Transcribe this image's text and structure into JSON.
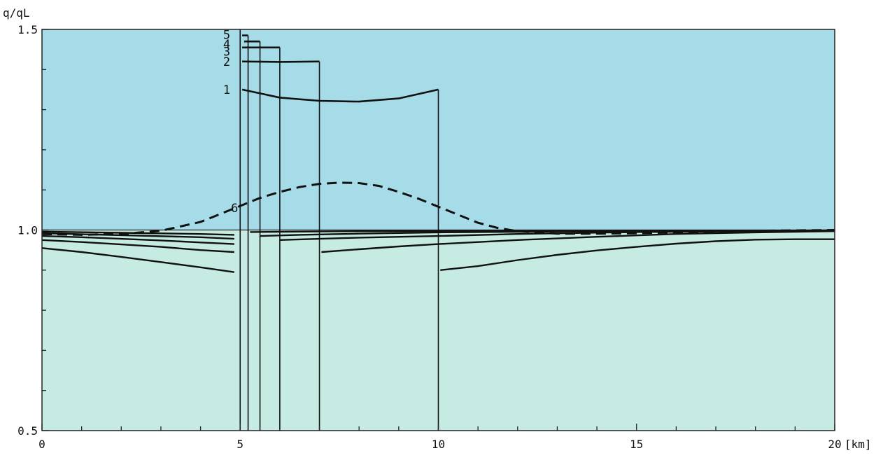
{
  "chart_data": {
    "type": "line",
    "ylabel": "q/qL",
    "xlabel": "[km]",
    "xlim": [
      0,
      20
    ],
    "ylim": [
      0.5,
      1.5
    ],
    "x_ticks": [
      0,
      5,
      10,
      15,
      20
    ],
    "x_tick_labels": [
      "0",
      "5",
      "10",
      "15",
      "20"
    ],
    "y_ticks": [
      0.5,
      1.0,
      1.5
    ],
    "y_tick_labels": [
      "0.5",
      "1.0",
      "1.5"
    ],
    "x_minor_step": 1,
    "y_minor_step": 0.1,
    "reference_level": 1.0,
    "colors": {
      "upper_region": "#a6dbe8",
      "lower_region": "#c5ebe2",
      "line": "#111111",
      "frame": "#222222"
    },
    "series": [
      {
        "name": "1",
        "style": "solid",
        "zone_start": 5.0,
        "zone_end": 10.0,
        "peak": [
          [
            5.05,
            1.35
          ],
          [
            6.0,
            1.33
          ],
          [
            7.0,
            1.322
          ],
          [
            8.0,
            1.32
          ],
          [
            9.0,
            1.328
          ],
          [
            10.0,
            1.35
          ]
        ],
        "outside": [
          [
            0,
            0.955
          ],
          [
            1,
            0.945
          ],
          [
            2,
            0.933
          ],
          [
            3,
            0.92
          ],
          [
            4,
            0.907
          ],
          [
            4.85,
            0.895
          ],
          [
            10.05,
            0.9
          ],
          [
            11,
            0.91
          ],
          [
            12,
            0.925
          ],
          [
            13,
            0.938
          ],
          [
            14,
            0.949
          ],
          [
            15,
            0.958
          ],
          [
            16,
            0.966
          ],
          [
            17,
            0.972
          ],
          [
            18,
            0.976
          ],
          [
            19,
            0.977
          ],
          [
            20,
            0.977
          ]
        ]
      },
      {
        "name": "2",
        "style": "solid",
        "zone_start": 5.0,
        "zone_end": 7.0,
        "peak": [
          [
            5.05,
            1.42
          ],
          [
            6.0,
            1.419
          ],
          [
            7.0,
            1.42
          ]
        ],
        "outside": [
          [
            0,
            0.975
          ],
          [
            1,
            0.97
          ],
          [
            2,
            0.964
          ],
          [
            3,
            0.958
          ],
          [
            4,
            0.95
          ],
          [
            4.85,
            0.945
          ],
          [
            7.05,
            0.945
          ],
          [
            8,
            0.952
          ],
          [
            9,
            0.959
          ],
          [
            10,
            0.965
          ],
          [
            12,
            0.975
          ],
          [
            14,
            0.983
          ],
          [
            16,
            0.99
          ],
          [
            18,
            0.994
          ],
          [
            20,
            0.997
          ]
        ]
      },
      {
        "name": "3",
        "style": "solid",
        "zone_start": 5.0,
        "zone_end": 6.0,
        "peak": [
          [
            5.05,
            1.455
          ],
          [
            6.0,
            1.455
          ]
        ],
        "outside": [
          [
            0,
            0.985
          ],
          [
            1,
            0.982
          ],
          [
            2,
            0.978
          ],
          [
            3,
            0.974
          ],
          [
            4,
            0.969
          ],
          [
            4.85,
            0.965
          ],
          [
            6.0,
            0.975
          ],
          [
            7,
            0.978
          ],
          [
            8,
            0.981
          ],
          [
            10,
            0.985
          ],
          [
            12,
            0.99
          ],
          [
            15,
            0.995
          ],
          [
            20,
            0.998
          ]
        ]
      },
      {
        "name": "4",
        "style": "solid",
        "zone_start": 5.0,
        "zone_end": 5.5,
        "peak": [
          [
            5.1,
            1.47
          ],
          [
            5.5,
            1.47
          ]
        ],
        "outside": [
          [
            0,
            0.992
          ],
          [
            2,
            0.987
          ],
          [
            4,
            0.982
          ],
          [
            4.85,
            0.978
          ],
          [
            5.5,
            0.985
          ],
          [
            6.5,
            0.988
          ],
          [
            8,
            0.991
          ],
          [
            10,
            0.994
          ],
          [
            14,
            0.997
          ],
          [
            20,
            0.999
          ]
        ]
      },
      {
        "name": "5",
        "style": "solid",
        "zone_start": 5.0,
        "zone_end": 5.2,
        "peak": [
          [
            5.05,
            1.485
          ],
          [
            5.2,
            1.485
          ]
        ],
        "outside": [
          [
            0,
            0.996
          ],
          [
            2,
            0.993
          ],
          [
            4,
            0.99
          ],
          [
            4.85,
            0.988
          ],
          [
            5.25,
            0.995
          ],
          [
            8,
            0.997
          ],
          [
            20,
            0.999
          ]
        ]
      },
      {
        "name": "6",
        "style": "dashed",
        "points": [
          [
            0,
            0.99
          ],
          [
            1,
            0.988
          ],
          [
            2,
            0.99
          ],
          [
            3,
            0.998
          ],
          [
            4,
            1.02
          ],
          [
            5,
            1.06
          ],
          [
            5.5,
            1.08
          ],
          [
            6,
            1.095
          ],
          [
            6.5,
            1.107
          ],
          [
            7,
            1.115
          ],
          [
            7.5,
            1.118
          ],
          [
            8,
            1.117
          ],
          [
            8.5,
            1.11
          ],
          [
            9,
            1.095
          ],
          [
            9.5,
            1.078
          ],
          [
            10,
            1.058
          ],
          [
            10.5,
            1.038
          ],
          [
            11,
            1.018
          ],
          [
            11.5,
            1.005
          ],
          [
            12,
            0.997
          ],
          [
            13,
            0.991
          ],
          [
            14,
            0.991
          ],
          [
            15,
            0.992
          ],
          [
            16,
            0.994
          ],
          [
            17,
            0.996
          ],
          [
            18,
            0.998
          ],
          [
            19,
            0.999
          ],
          [
            20,
            1.0
          ]
        ]
      }
    ],
    "zone_boundaries": [
      5.0,
      5.2,
      5.5,
      6.0,
      7.0,
      10.0
    ]
  }
}
